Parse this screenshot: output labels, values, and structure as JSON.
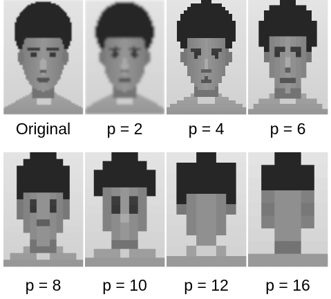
{
  "panels": [
    {
      "caption": "Original"
    },
    {
      "caption": "p = 2"
    },
    {
      "caption": "p = 4"
    },
    {
      "caption": "p = 6"
    },
    {
      "caption": "p = 8"
    },
    {
      "caption": "p = 10"
    },
    {
      "caption": "p = 12"
    },
    {
      "caption": "p = 16"
    }
  ]
}
